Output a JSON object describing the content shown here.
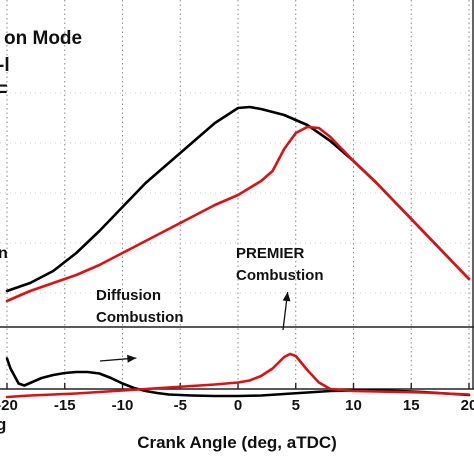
{
  "chart_data": {
    "type": "line",
    "legend_lines": [
      "on Mode",
      "-l",
      "F"
    ],
    "side_labels": [
      "n",
      "g"
    ],
    "xlabel": "Crank Angle (deg, aTDC)",
    "x_ticks": [
      "-20",
      "-15",
      "-10",
      "-5",
      "0",
      "5",
      "10",
      "15",
      "20"
    ],
    "xlim": [
      -20.5,
      20.5
    ],
    "ylim_top": [
      0,
      1
    ],
    "ylim_bottom": [
      0,
      1
    ],
    "grid": "vertical dotted",
    "colors": {
      "series_1": "#000000",
      "series_2": "#dd1111",
      "axes": "#222222",
      "grid": "#888888"
    },
    "annotations": [
      {
        "lines": [
          "Diffusion",
          "Combustion"
        ],
        "target_x": -8.8,
        "target_y": 0.72
      },
      {
        "lines": [
          "PREMIER",
          "Combustion"
        ],
        "target_x": 4.3,
        "target_y": 0.88
      }
    ],
    "top_panel": {
      "series": [
        {
          "color": "#000000",
          "x": [
            -20,
            -18,
            -16,
            -14,
            -12,
            -10,
            -8,
            -6,
            -4,
            -2,
            0,
            1,
            2,
            4,
            6,
            8,
            10,
            12,
            14,
            16,
            18,
            20
          ],
          "y": [
            0.03,
            0.07,
            0.13,
            0.22,
            0.33,
            0.45,
            0.57,
            0.67,
            0.77,
            0.87,
            0.945,
            0.95,
            0.94,
            0.91,
            0.86,
            0.78,
            0.68,
            0.57,
            0.45,
            0.33,
            0.21,
            0.09
          ]
        },
        {
          "color": "#dd1111",
          "x": [
            -20,
            -18,
            -16,
            -14,
            -12,
            -10,
            -8,
            -6,
            -4,
            -2,
            0,
            2,
            3,
            4,
            5,
            6,
            7,
            8,
            10,
            12,
            14,
            16,
            18,
            20
          ],
          "y": [
            -0.02,
            0.03,
            0.07,
            0.11,
            0.16,
            0.22,
            0.28,
            0.34,
            0.4,
            0.46,
            0.51,
            0.58,
            0.63,
            0.74,
            0.82,
            0.85,
            0.845,
            0.8,
            0.68,
            0.57,
            0.45,
            0.33,
            0.21,
            0.09
          ]
        }
      ]
    },
    "bottom_panel": {
      "series": [
        {
          "color": "#000000",
          "x": [
            -20,
            -19.7,
            -19,
            -18.5,
            -18,
            -17,
            -16,
            -15,
            -14,
            -13,
            -12,
            -11,
            -10,
            -9,
            -8,
            -7,
            -6,
            -4,
            -2,
            0,
            2,
            4,
            6,
            8,
            10,
            12,
            14,
            16,
            18,
            20
          ],
          "y": [
            0.75,
            0.55,
            0.25,
            0.21,
            0.26,
            0.36,
            0.42,
            0.46,
            0.48,
            0.48,
            0.45,
            0.36,
            0.25,
            0.16,
            0.1,
            0.06,
            0.03,
            0.01,
            0.0,
            0.0,
            0.01,
            0.04,
            0.07,
            0.1,
            0.11,
            0.11,
            0.1,
            0.08,
            0.05,
            0.02
          ]
        },
        {
          "color": "#dd1111",
          "x": [
            -20,
            -18,
            -16,
            -14,
            -12,
            -10,
            -8,
            -6,
            -4,
            -2,
            0,
            1,
            2,
            3,
            4,
            4.5,
            5,
            6,
            7,
            8,
            10,
            12,
            14,
            16,
            18,
            20
          ],
          "y": [
            -0.02,
            0.01,
            0.03,
            0.05,
            0.08,
            0.11,
            0.14,
            0.17,
            0.2,
            0.23,
            0.27,
            0.31,
            0.4,
            0.55,
            0.78,
            0.84,
            0.8,
            0.52,
            0.27,
            0.14,
            0.1,
            0.09,
            0.08,
            0.07,
            0.05,
            0.03
          ]
        }
      ]
    }
  }
}
